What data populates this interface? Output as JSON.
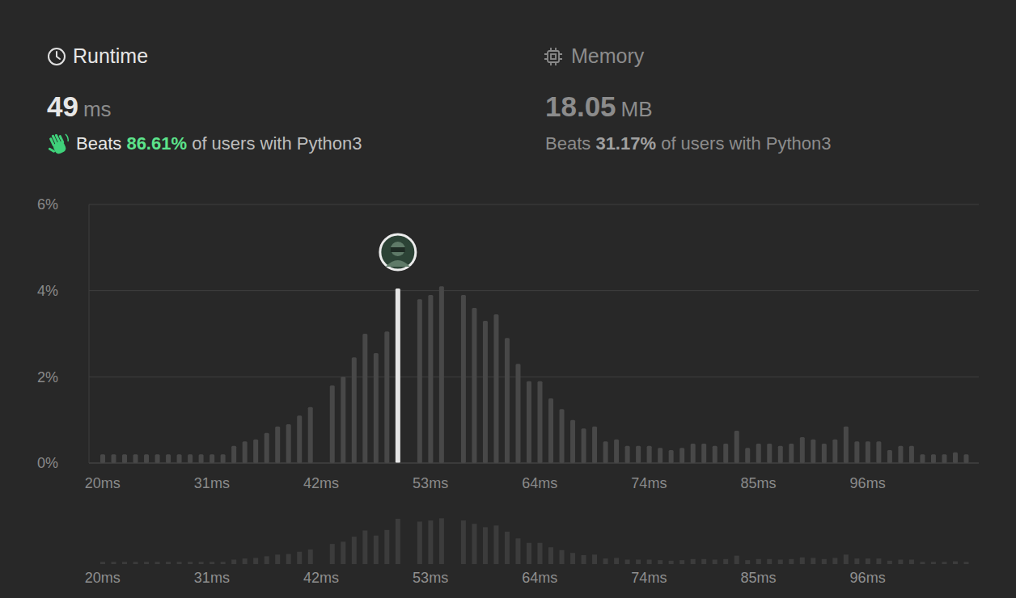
{
  "header": {
    "runtime": {
      "title": "Runtime",
      "value": 49,
      "unit": "ms",
      "beats_prefix": "Beats",
      "beats": {
        "value": 86.61,
        "label": "86.61%"
      },
      "beats_suffix": "of users with Python3"
    },
    "memory": {
      "title": "Memory",
      "value": 18.05,
      "unit": "MB",
      "beats_prefix": "Beats",
      "beats": {
        "value": 31.17,
        "label": "31.17%"
      },
      "beats_suffix": "of users with Python3"
    }
  },
  "chart_data": {
    "type": "bar",
    "categories": [
      "20ms",
      null,
      null,
      null,
      null,
      null,
      null,
      null,
      null,
      null,
      "31ms",
      null,
      null,
      null,
      null,
      null,
      null,
      null,
      null,
      null,
      "42ms",
      null,
      null,
      null,
      null,
      null,
      null,
      null,
      null,
      null,
      "53ms",
      null,
      null,
      null,
      null,
      null,
      null,
      null,
      null,
      null,
      "64ms",
      null,
      null,
      null,
      null,
      null,
      null,
      null,
      null,
      null,
      "74ms",
      null,
      null,
      null,
      null,
      null,
      null,
      null,
      null,
      null,
      "85ms",
      null,
      null,
      null,
      null,
      null,
      null,
      null,
      null,
      null,
      "96ms",
      null,
      null,
      null,
      null,
      null,
      null,
      null,
      null,
      null
    ],
    "values": [
      0.2,
      0.2,
      0.2,
      0.2,
      0.2,
      0.2,
      0.2,
      0.2,
      0.2,
      0.2,
      0.2,
      0.2,
      0.4,
      0.5,
      0.55,
      0.7,
      0.85,
      0.9,
      1.1,
      1.3,
      0,
      1.8,
      2.0,
      2.45,
      3.0,
      2.55,
      3.05,
      4.05,
      0,
      3.8,
      3.9,
      4.1,
      0,
      3.9,
      3.6,
      3.3,
      3.45,
      2.9,
      2.3,
      1.9,
      1.9,
      1.5,
      1.25,
      1.0,
      0.8,
      0.85,
      0.5,
      0.55,
      0.4,
      0.4,
      0.4,
      0.35,
      0.3,
      0.35,
      0.45,
      0.45,
      0.4,
      0.45,
      0.75,
      0.35,
      0.45,
      0.45,
      0.4,
      0.45,
      0.6,
      0.55,
      0.45,
      0.55,
      0.85,
      0.5,
      0.5,
      0.5,
      0.3,
      0.4,
      0.4,
      0.2,
      0.2,
      0.2,
      0.25,
      0.2
    ],
    "colors": [
      "#484848",
      "#484848",
      "#484848",
      "#484848",
      "#484848",
      "#484848",
      "#484848",
      "#484848",
      "#484848",
      "#484848",
      "#484848",
      "#484848",
      "#484848",
      "#484848",
      "#484848",
      "#484848",
      "#484848",
      "#484848",
      "#484848",
      "#484848",
      "#484848",
      "#484848",
      "#484848",
      "#484848",
      "#484848",
      "#484848",
      "#484848",
      "#e6e6e6",
      "#484848",
      "#484848",
      "#484848",
      "#484848",
      "#484848",
      "#484848",
      "#484848",
      "#484848",
      "#484848",
      "#484848",
      "#484848",
      "#484848",
      "#484848",
      "#484848",
      "#484848",
      "#484848",
      "#484848",
      "#484848",
      "#484848",
      "#484848",
      "#484848",
      "#484848",
      "#484848",
      "#484848",
      "#484848",
      "#484848",
      "#484848",
      "#484848",
      "#484848",
      "#484848",
      "#484848",
      "#484848",
      "#484848",
      "#484848",
      "#484848",
      "#484848",
      "#484848",
      "#484848",
      "#484848",
      "#484848",
      "#484848",
      "#484848",
      "#484848",
      "#484848",
      "#484848",
      "#484848",
      "#484848",
      "#484848",
      "#484848",
      "#484848",
      "#484848",
      "#484848"
    ],
    "ylim": [
      0,
      6
    ],
    "yticks": [
      {
        "value": 0,
        "label": "0%"
      },
      {
        "value": 2,
        "label": "2%"
      },
      {
        "value": 4,
        "label": "4%"
      },
      {
        "value": 6,
        "label": "6%"
      }
    ],
    "grid": true
  }
}
